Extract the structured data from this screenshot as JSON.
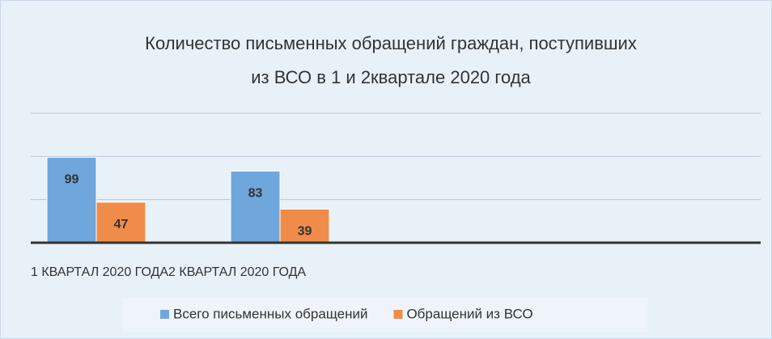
{
  "chart_data": {
    "type": "bar",
    "title": [
      "Количество письменных обращений граждан, поступивших",
      "из ВСО в 1 и 2квартале 2020 года"
    ],
    "categories": [
      "1 КВАРТАЛ 2020 ГОДА",
      "2 КВАРТАЛ 2020 ГОДА"
    ],
    "series": [
      {
        "name": "Всего письменных обращений",
        "color": "#6fa6dc",
        "values": [
          99,
          83
        ]
      },
      {
        "name": "Обращений из ВСО",
        "color": "#f08c4a",
        "values": [
          47,
          39
        ]
      }
    ],
    "ylim": [
      0,
      150
    ],
    "yticks": [
      0,
      50,
      100,
      150
    ],
    "grid": true
  }
}
